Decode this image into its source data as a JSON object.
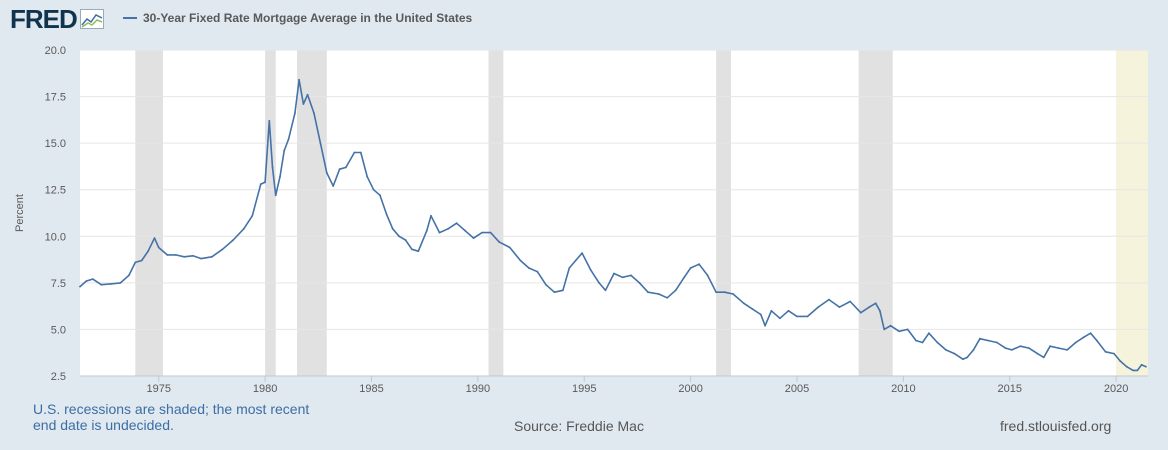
{
  "header": {
    "logo_text": "FRED"
  },
  "footer": {
    "recession_note": "U.S. recessions are shaded; the most recent end date is undecided.",
    "source": "Source: Freddie Mac",
    "site": "fred.stlouisfed.org"
  },
  "colors": {
    "line": "#4572a7",
    "recession_shade": "#e1e1e1",
    "undecided_shade": "#f5f3dc",
    "background": "#e1e9f0",
    "plot_background": "#ffffff"
  },
  "chart_data": {
    "type": "line",
    "title": "",
    "xlabel": "",
    "ylabel": "Percent",
    "xlim": [
      1971.3,
      2021.5
    ],
    "ylim": [
      2.5,
      20.0
    ],
    "yticks": [
      "20.0",
      "17.5",
      "15.0",
      "12.5",
      "10.0",
      "7.5",
      "5.0",
      "2.5"
    ],
    "xticks": [
      "1975",
      "1980",
      "1985",
      "1990",
      "1995",
      "2000",
      "2005",
      "2010",
      "2015",
      "2020"
    ],
    "grid": "horizontal",
    "legend_position": "top",
    "recessions": [
      [
        1973.9,
        1975.2
      ],
      [
        1980.0,
        1980.5
      ],
      [
        1981.5,
        1982.9
      ],
      [
        1990.5,
        1991.2
      ],
      [
        2001.2,
        2001.9
      ],
      [
        2007.9,
        2009.5
      ]
    ],
    "undecided_recession": [
      2020.0,
      2021.5
    ],
    "series": [
      {
        "name": "30-Year Fixed Rate Mortgage Average in the United States",
        "x": [
          1971.3,
          1971.6,
          1971.9,
          1972.3,
          1972.8,
          1973.2,
          1973.6,
          1973.9,
          1974.2,
          1974.5,
          1974.8,
          1975.0,
          1975.4,
          1975.8,
          1976.2,
          1976.6,
          1977.0,
          1977.5,
          1978.0,
          1978.5,
          1979.0,
          1979.4,
          1979.8,
          1980.0,
          1980.2,
          1980.35,
          1980.5,
          1980.7,
          1980.9,
          1981.1,
          1981.4,
          1981.6,
          1981.8,
          1982.0,
          1982.3,
          1982.6,
          1982.9,
          1983.2,
          1983.5,
          1983.8,
          1984.2,
          1984.5,
          1984.8,
          1985.1,
          1985.4,
          1985.7,
          1986.0,
          1986.3,
          1986.6,
          1986.9,
          1987.2,
          1987.6,
          1987.8,
          1988.2,
          1988.6,
          1989.0,
          1989.4,
          1989.8,
          1990.2,
          1990.6,
          1991.0,
          1991.5,
          1992.0,
          1992.4,
          1992.8,
          1993.2,
          1993.6,
          1994.0,
          1994.3,
          1994.6,
          1994.9,
          1995.3,
          1995.7,
          1996.0,
          1996.4,
          1996.8,
          1997.2,
          1997.6,
          1998.0,
          1998.5,
          1998.9,
          1999.3,
          1999.7,
          2000.0,
          2000.4,
          2000.8,
          2001.2,
          2001.6,
          2002.0,
          2002.5,
          2002.9,
          2003.3,
          2003.5,
          2003.8,
          2004.2,
          2004.6,
          2005.0,
          2005.5,
          2006.0,
          2006.5,
          2007.0,
          2007.5,
          2008.0,
          2008.4,
          2008.7,
          2008.9,
          2009.1,
          2009.4,
          2009.8,
          2010.2,
          2010.6,
          2010.9,
          2011.2,
          2011.6,
          2012.0,
          2012.4,
          2012.8,
          2013.0,
          2013.3,
          2013.6,
          2014.0,
          2014.4,
          2014.8,
          2015.1,
          2015.5,
          2015.9,
          2016.3,
          2016.6,
          2016.9,
          2017.3,
          2017.7,
          2018.1,
          2018.5,
          2018.8,
          2019.1,
          2019.5,
          2019.9,
          2020.2,
          2020.5,
          2020.8,
          2021.0,
          2021.2,
          2021.4
        ],
        "values": [
          7.3,
          7.6,
          7.7,
          7.4,
          7.45,
          7.5,
          7.9,
          8.6,
          8.7,
          9.2,
          9.9,
          9.4,
          9.0,
          9.0,
          8.9,
          8.95,
          8.8,
          8.9,
          9.3,
          9.8,
          10.4,
          11.1,
          12.8,
          12.9,
          16.2,
          13.7,
          12.2,
          13.2,
          14.6,
          15.2,
          16.6,
          18.4,
          17.1,
          17.6,
          16.6,
          15.0,
          13.4,
          12.7,
          13.6,
          13.7,
          14.5,
          14.5,
          13.2,
          12.5,
          12.2,
          11.2,
          10.4,
          10.0,
          9.8,
          9.3,
          9.2,
          10.3,
          11.1,
          10.2,
          10.4,
          10.7,
          10.3,
          9.9,
          10.2,
          10.2,
          9.7,
          9.4,
          8.7,
          8.3,
          8.1,
          7.4,
          7.0,
          7.1,
          8.3,
          8.7,
          9.1,
          8.2,
          7.5,
          7.1,
          8.0,
          7.8,
          7.9,
          7.5,
          7.0,
          6.9,
          6.7,
          7.1,
          7.8,
          8.3,
          8.5,
          7.9,
          7.0,
          7.0,
          6.9,
          6.4,
          6.1,
          5.8,
          5.2,
          6.0,
          5.6,
          6.0,
          5.7,
          5.7,
          6.2,
          6.6,
          6.2,
          6.5,
          5.9,
          6.2,
          6.4,
          6.0,
          5.0,
          5.2,
          4.9,
          5.0,
          4.4,
          4.3,
          4.8,
          4.3,
          3.9,
          3.7,
          3.4,
          3.5,
          3.9,
          4.5,
          4.4,
          4.3,
          4.0,
          3.9,
          4.1,
          4.0,
          3.7,
          3.5,
          4.1,
          4.0,
          3.9,
          4.3,
          4.6,
          4.8,
          4.4,
          3.8,
          3.7,
          3.3,
          3.0,
          2.8,
          2.8,
          3.1,
          3.0
        ]
      }
    ]
  }
}
